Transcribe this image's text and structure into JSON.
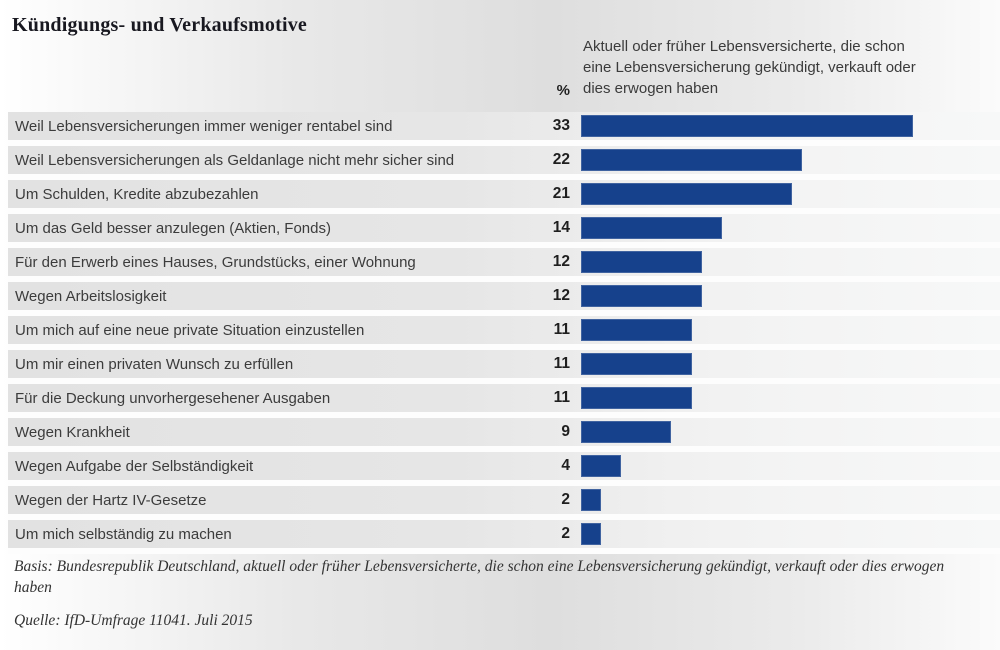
{
  "chart_data": {
    "type": "bar",
    "orientation": "horizontal",
    "title": "Kündigungs- und Verkaufsmotive",
    "unit_header": "%",
    "legend": "Aktuell oder früher Lebensversicherte, die schon eine Lebensversicherung gekündigt, verkauft oder dies erwogen haben",
    "categories": [
      "Weil Lebensversicherungen immer weniger rentabel sind",
      "Weil Lebensversicherungen als Geldanlage nicht mehr sicher sind",
      "Um Schulden, Kredite abzubezahlen",
      "Um das Geld besser anzulegen (Aktien, Fonds)",
      "Für den Erwerb eines Hauses, Grundstücks, einer Wohnung",
      "Wegen Arbeitslosigkeit",
      "Um mich auf eine neue private Situation einzustellen",
      "Um mir einen privaten Wunsch zu erfüllen",
      "Für die Deckung unvorhergesehener Ausgaben",
      "Wegen Krankheit",
      "Wegen Aufgabe der Selbständigkeit",
      "Wegen der Hartz IV-Gesetze",
      "Um mich selbständig zu machen"
    ],
    "values": [
      33,
      22,
      21,
      14,
      12,
      12,
      11,
      11,
      11,
      9,
      4,
      2,
      2
    ],
    "xlim": [
      0,
      42
    ],
    "value_labels_shown": true,
    "grid": false,
    "legend_position": "top-right"
  },
  "footer": {
    "basis": "Basis: Bundesrepublik Deutschland, aktuell oder früher Lebensversicherte, die schon eine Lebensversicherung gekündigt, verkauft oder dies erwogen haben",
    "source": "Quelle: IfD-Umfrage 11041. Juli 2015"
  },
  "colors": {
    "bar": "#16418c",
    "band_left": "#e2e2e2",
    "band_right": "#f7f8f8",
    "title_text": "#181820",
    "body_text": "#3c3c3c"
  }
}
